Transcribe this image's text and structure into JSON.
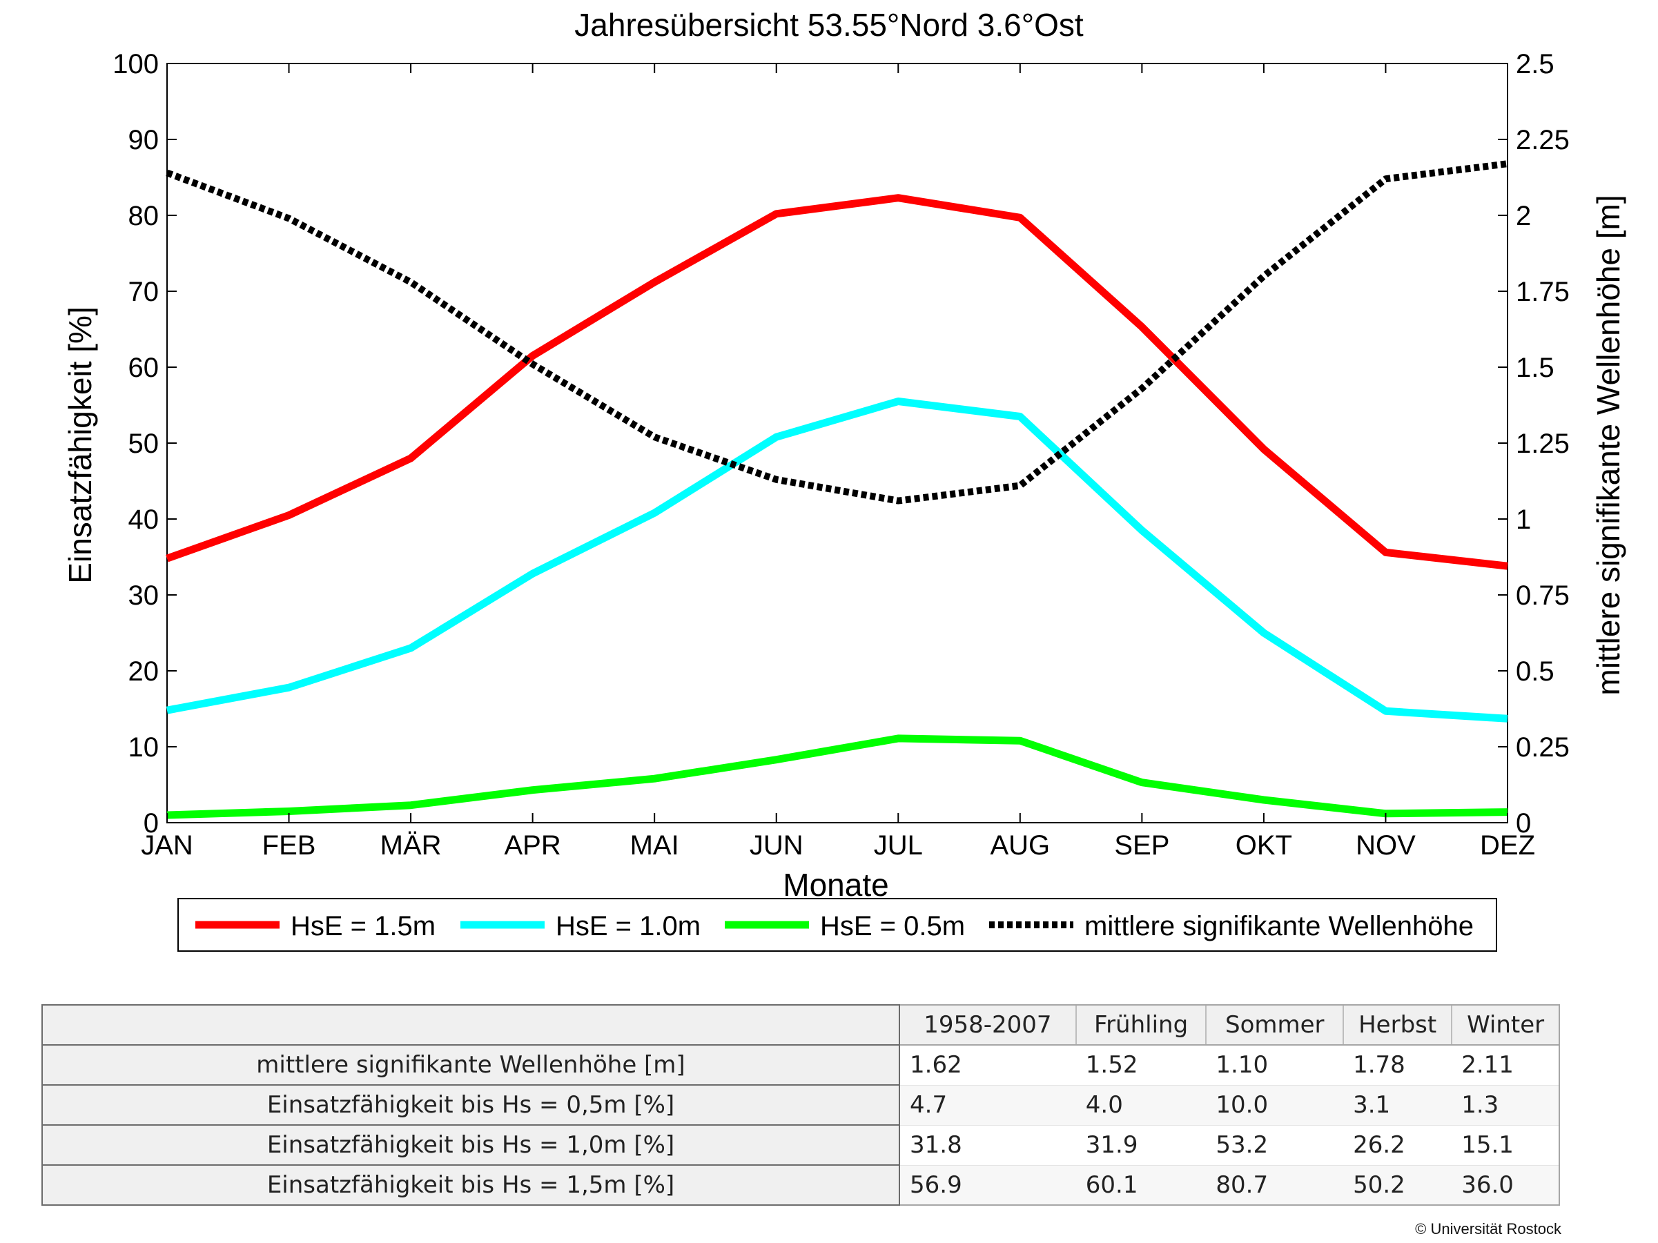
{
  "chart_data": {
    "type": "line",
    "title": "Jahresübersicht  53.55°Nord  3.6°Ost",
    "xlabel": "Monate",
    "ylabel": "Einsatzfähigkeit [%]",
    "y2label": "mittlere signifikante Wellenhöhe [m]",
    "categories": [
      "JAN",
      "FEB",
      "MÄR",
      "APR",
      "MAI",
      "JUN",
      "JUL",
      "AUG",
      "SEP",
      "OKT",
      "NOV",
      "DEZ"
    ],
    "ylim": [
      0,
      100
    ],
    "yticks": [
      "0",
      "10",
      "20",
      "30",
      "40",
      "50",
      "60",
      "70",
      "80",
      "90",
      "100"
    ],
    "y2lim": [
      0,
      2.5
    ],
    "y2ticks": [
      "0",
      "0.25",
      "0.5",
      "0.75",
      "1",
      "1.25",
      "1.5",
      "1.75",
      "2",
      "2.25",
      "2.5"
    ],
    "grid": false,
    "legend_position": "bottom",
    "series": [
      {
        "name": "HsE = 1.5m",
        "color": "#ff0000",
        "axis": "left",
        "style": "solid",
        "values": [
          34.8,
          40.5,
          48,
          61.5,
          71.2,
          80.2,
          82.3,
          79.7,
          65.3,
          49.2,
          35.6,
          33.8
        ]
      },
      {
        "name": "HsE = 1.0m",
        "color": "#00ffff",
        "axis": "left",
        "style": "solid",
        "values": [
          14.8,
          17.8,
          23,
          32.8,
          40.8,
          50.8,
          55.5,
          53.5,
          38.5,
          25,
          14.7,
          13.7
        ]
      },
      {
        "name": "HsE = 0.5m",
        "color": "#00ff00",
        "axis": "left",
        "style": "solid",
        "values": [
          1,
          1.5,
          2.3,
          4.3,
          5.8,
          8.3,
          11.1,
          10.8,
          5.3,
          3,
          1.2,
          1.4
        ]
      },
      {
        "name": "mittlere signifikante Wellenhöhe",
        "color": "#000000",
        "axis": "right",
        "style": "dotted",
        "values": [
          2.14,
          1.99,
          1.78,
          1.51,
          1.27,
          1.13,
          1.06,
          1.11,
          1.43,
          1.8,
          2.12,
          2.17
        ]
      }
    ]
  },
  "summary_table": {
    "columns": [
      "1958-2007",
      "Frühling",
      "Sommer",
      "Herbst",
      "Winter"
    ],
    "rows": [
      {
        "label": "mittlere signifikante Wellenhöhe [m]",
        "values": [
          "1.62",
          "1.52",
          "1.10",
          "1.78",
          "2.11"
        ]
      },
      {
        "label": "Einsatzfähigkeit bis Hs = 0,5m [%]",
        "values": [
          "4.7",
          "4.0",
          "10.0",
          "3.1",
          "1.3"
        ]
      },
      {
        "label": "Einsatzfähigkeit bis Hs = 1,0m [%]",
        "values": [
          "31.8",
          "31.9",
          "53.2",
          "26.2",
          "15.1"
        ]
      },
      {
        "label": "Einsatzfähigkeit bis Hs = 1,5m [%]",
        "values": [
          "56.9",
          "60.1",
          "80.7",
          "50.2",
          "36.0"
        ]
      }
    ]
  },
  "footer": {
    "copyright": "© Universität Rostock"
  }
}
